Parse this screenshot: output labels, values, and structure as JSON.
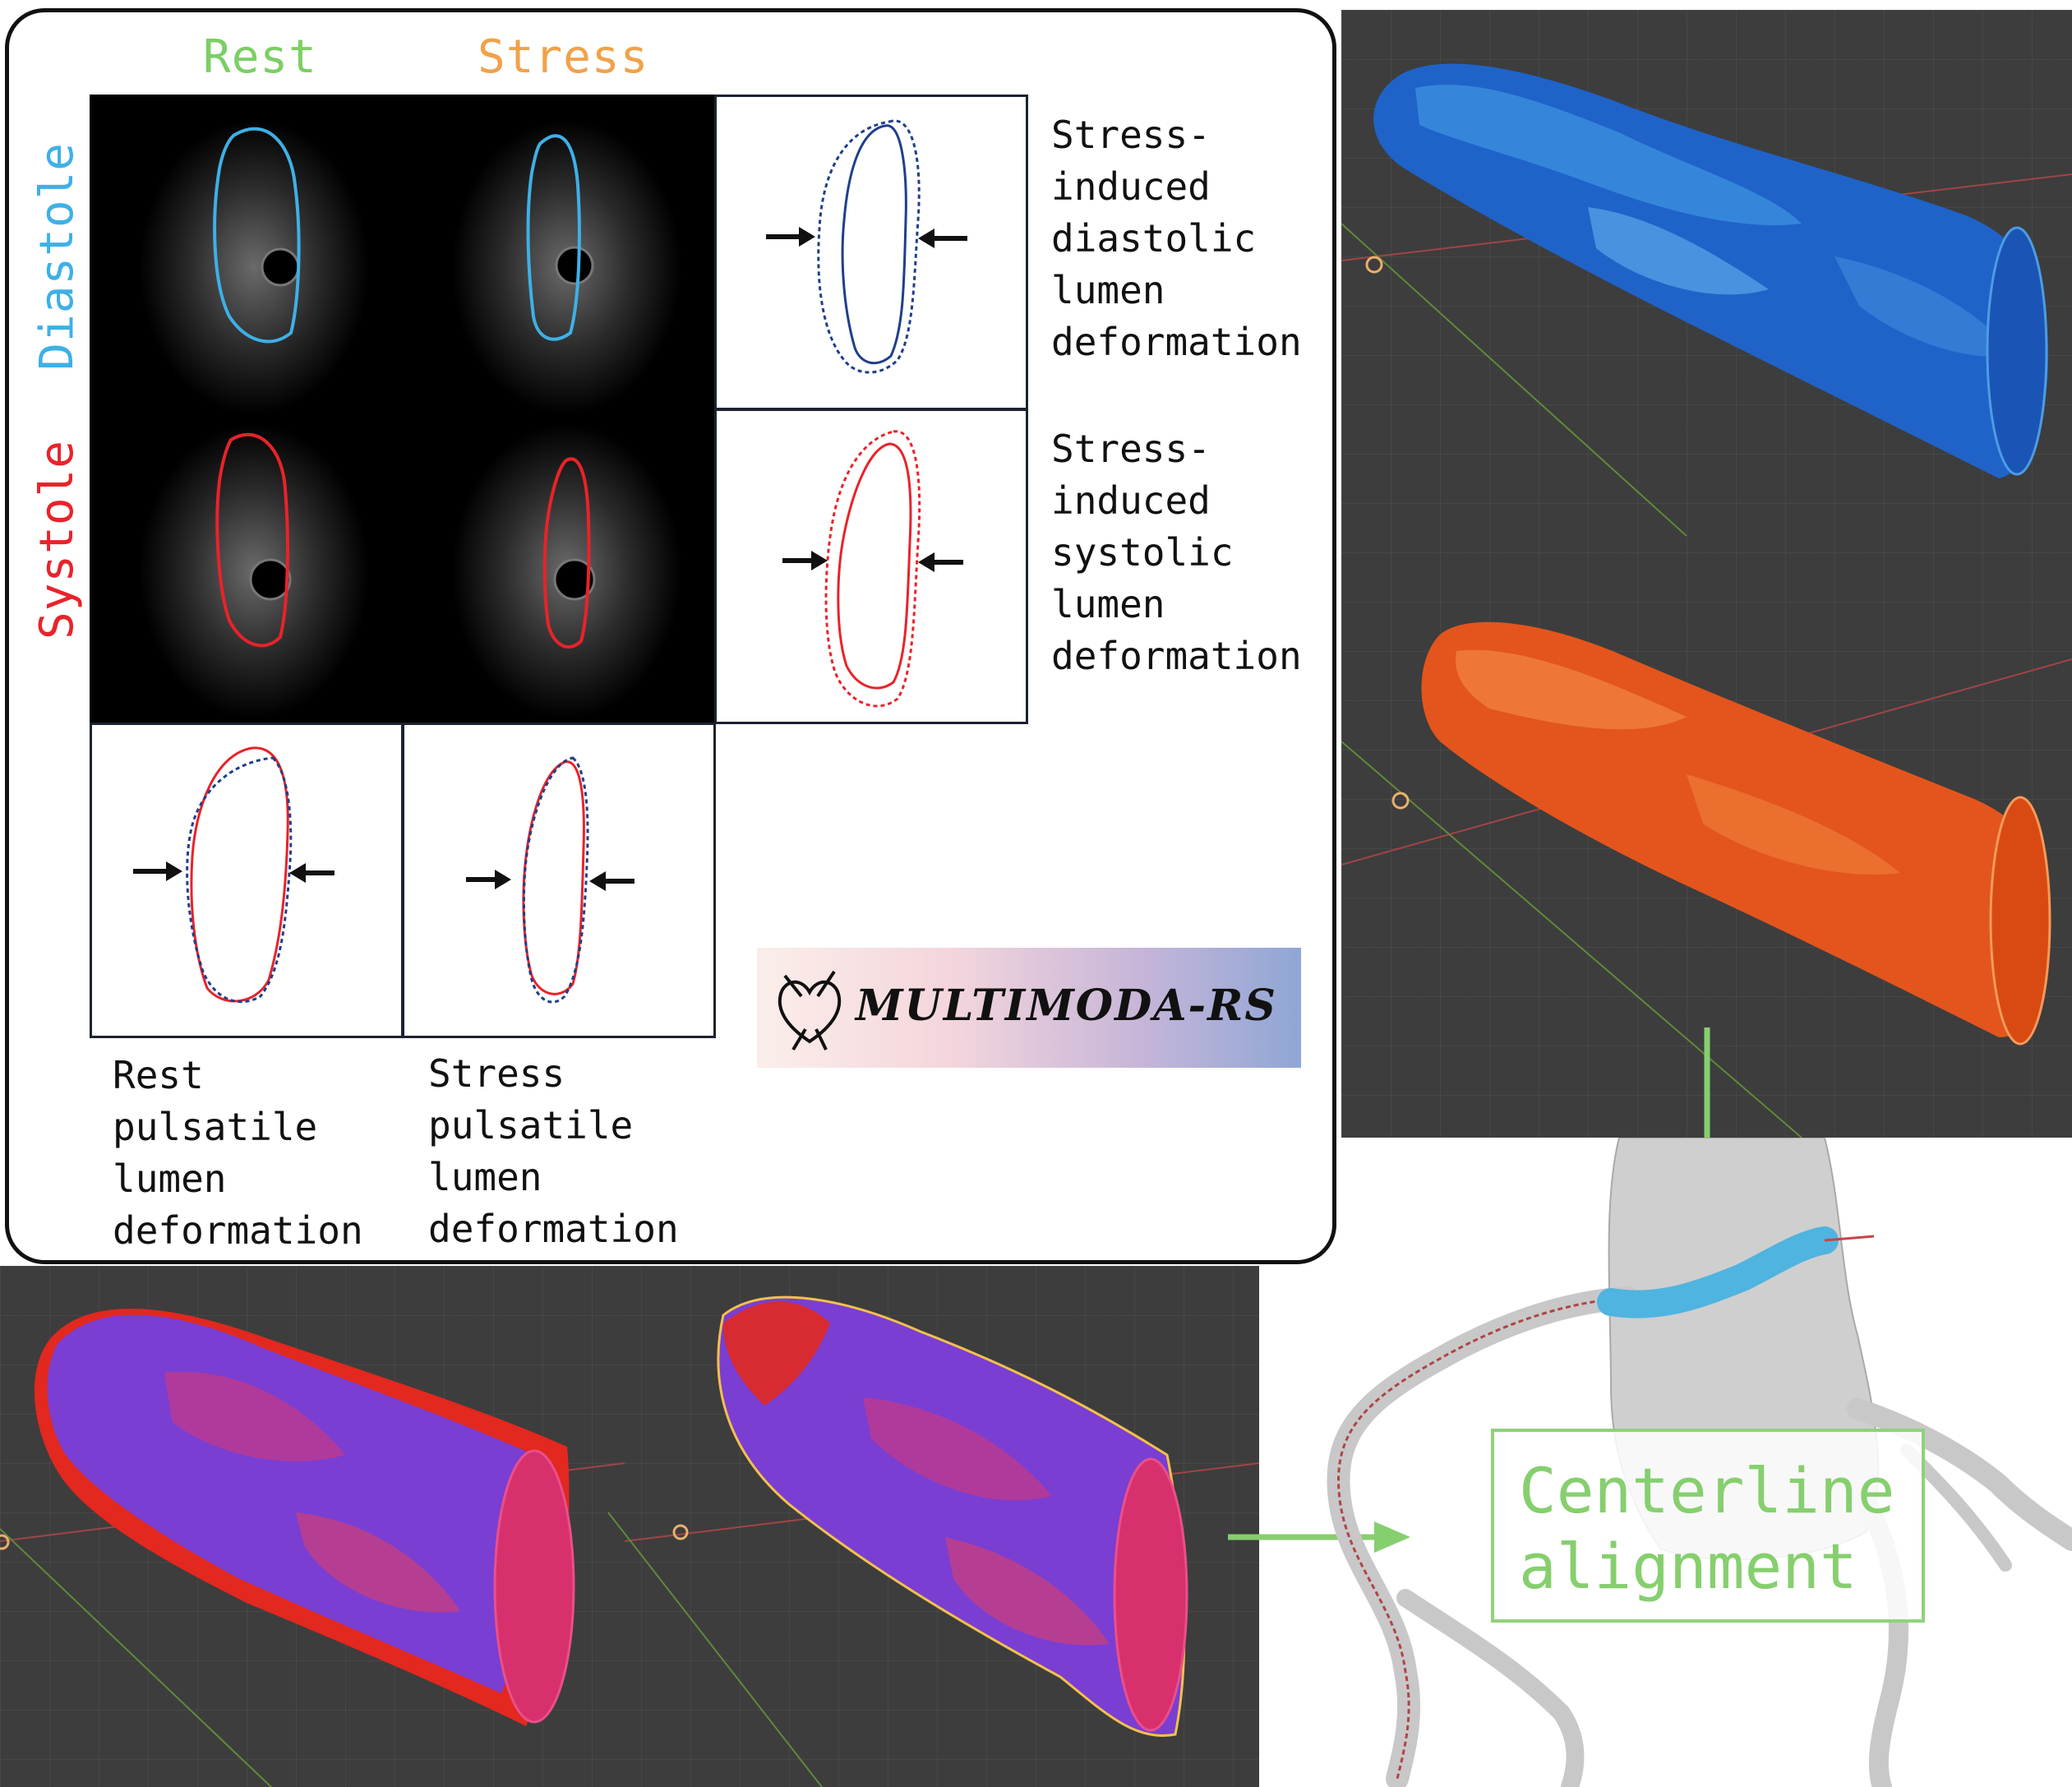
{
  "columns": {
    "rest": "Rest",
    "stress": "Stress"
  },
  "rows": {
    "diastole": "Diastole",
    "systole": "Systole"
  },
  "captions": {
    "stress_diastolic": "Stress-\ninduced\ndiastolic\nlumen\ndeformation",
    "stress_systolic": "Stress-\ninduced\nsystolic\nlumen\ndeformation",
    "rest_pulsatile": "Rest\npulsatile\nlumen\ndeformation",
    "stress_pulsatile": "Stress\npulsatile\nlumen\ndeformation"
  },
  "logo": {
    "text": "MULTIMODA-RS"
  },
  "centerline": {
    "text": "Centerline\nalignment"
  },
  "colors": {
    "rest": "#7bcf63",
    "stress": "#f0a24a",
    "diastole": "#3eb0e6",
    "systole": "#e8232a",
    "arrow_green": "#86cf6e"
  }
}
